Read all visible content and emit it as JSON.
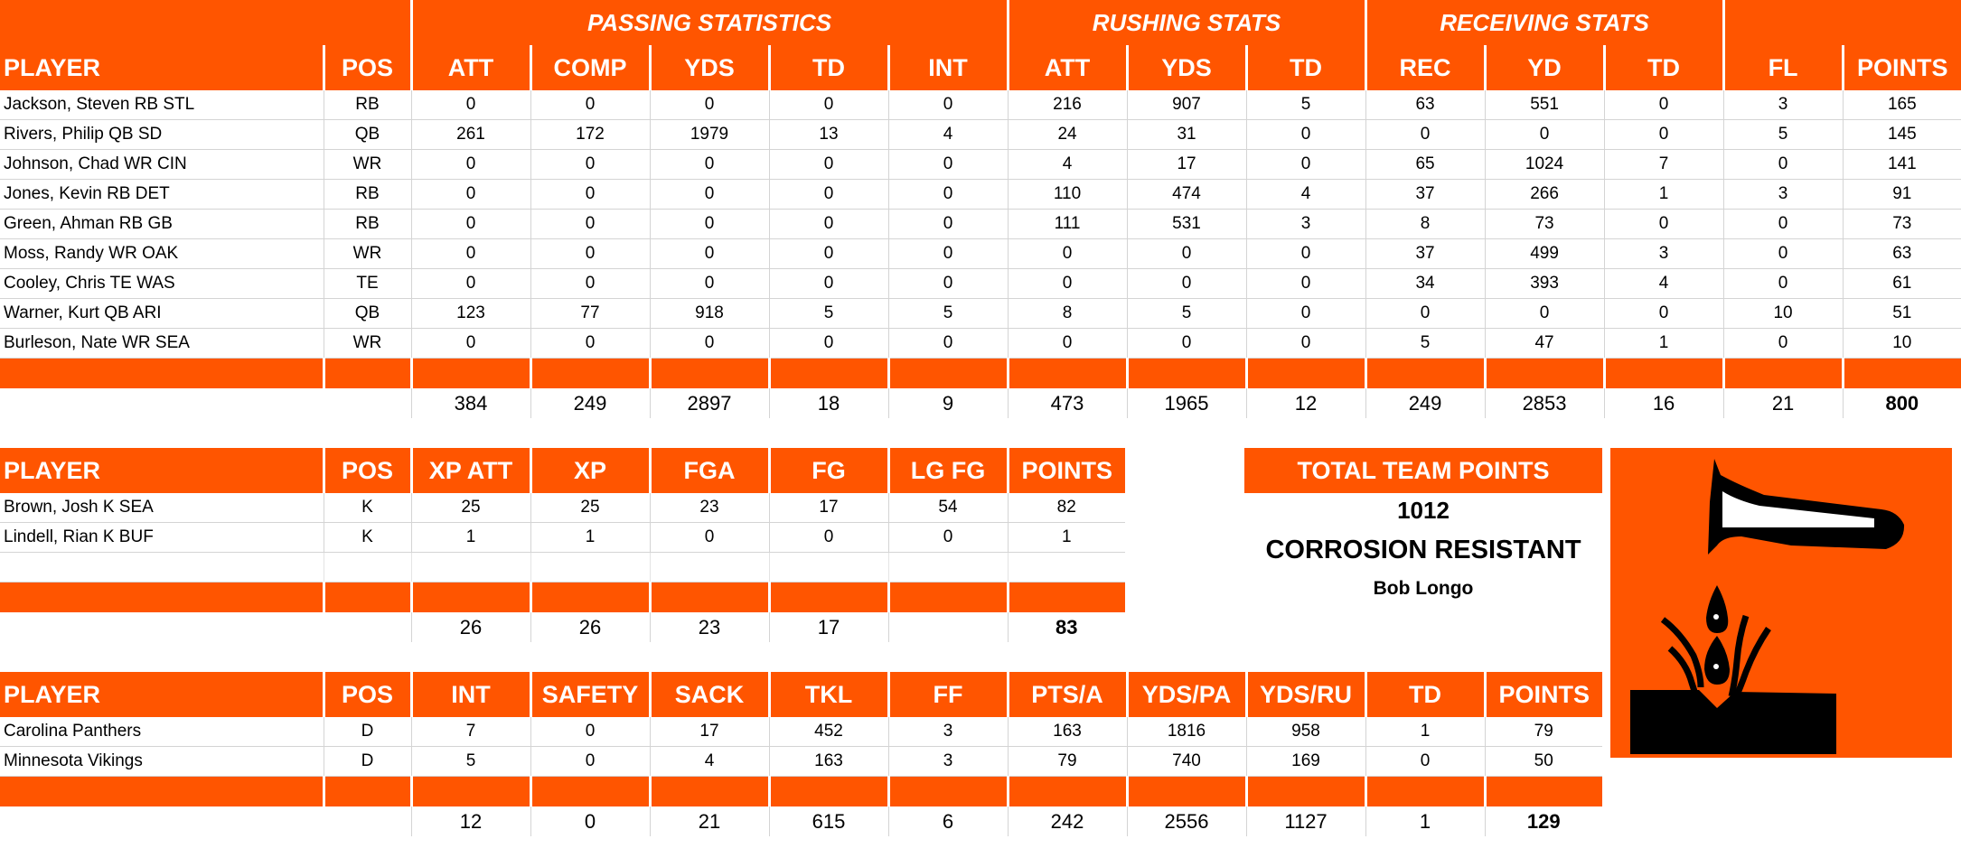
{
  "main_table": {
    "group_headers": {
      "passing": "PASSING STATISTICS",
      "rushing": "RUSHING STATS",
      "receiving": "RECEIVING STATS"
    },
    "columns": [
      "PLAYER",
      "POS",
      "ATT",
      "COMP",
      "YDS",
      "TD",
      "INT",
      "ATT",
      "YDS",
      "TD",
      "REC",
      "YD",
      "TD",
      "FL",
      "POINTS"
    ],
    "rows": [
      [
        "Jackson, Steven RB STL",
        "RB",
        "0",
        "0",
        "0",
        "0",
        "0",
        "216",
        "907",
        "5",
        "63",
        "551",
        "0",
        "3",
        "165"
      ],
      [
        "Rivers, Philip QB SD",
        "QB",
        "261",
        "172",
        "1979",
        "13",
        "4",
        "24",
        "31",
        "0",
        "0",
        "0",
        "0",
        "5",
        "145"
      ],
      [
        "Johnson, Chad WR CIN",
        "WR",
        "0",
        "0",
        "0",
        "0",
        "0",
        "4",
        "17",
        "0",
        "65",
        "1024",
        "7",
        "0",
        "141"
      ],
      [
        "Jones, Kevin RB DET",
        "RB",
        "0",
        "0",
        "0",
        "0",
        "0",
        "110",
        "474",
        "4",
        "37",
        "266",
        "1",
        "3",
        "91"
      ],
      [
        "Green, Ahman RB GB",
        "RB",
        "0",
        "0",
        "0",
        "0",
        "0",
        "111",
        "531",
        "3",
        "8",
        "73",
        "0",
        "0",
        "73"
      ],
      [
        "Moss, Randy WR OAK",
        "WR",
        "0",
        "0",
        "0",
        "0",
        "0",
        "0",
        "0",
        "0",
        "37",
        "499",
        "3",
        "0",
        "63"
      ],
      [
        "Cooley, Chris TE WAS",
        "TE",
        "0",
        "0",
        "0",
        "0",
        "0",
        "0",
        "0",
        "0",
        "34",
        "393",
        "4",
        "0",
        "61"
      ],
      [
        "Warner, Kurt QB ARI",
        "QB",
        "123",
        "77",
        "918",
        "5",
        "5",
        "8",
        "5",
        "0",
        "0",
        "0",
        "0",
        "10",
        "51"
      ],
      [
        "Burleson, Nate WR SEA",
        "WR",
        "0",
        "0",
        "0",
        "0",
        "0",
        "0",
        "0",
        "0",
        "5",
        "47",
        "1",
        "0",
        "10"
      ]
    ],
    "totals": [
      "",
      "",
      "384",
      "249",
      "2897",
      "18",
      "9",
      "473",
      "1965",
      "12",
      "249",
      "2853",
      "16",
      "21",
      "800"
    ]
  },
  "kicker_table": {
    "columns": [
      "PLAYER",
      "POS",
      "XP ATT",
      "XP",
      "FGA",
      "FG",
      "LG FG",
      "POINTS"
    ],
    "rows": [
      [
        "Brown, Josh K SEA",
        "K",
        "25",
        "25",
        "23",
        "17",
        "54",
        "82"
      ],
      [
        "Lindell, Rian K BUF",
        "K",
        "1",
        "1",
        "0",
        "0",
        "0",
        "1"
      ]
    ],
    "totals": [
      "",
      "",
      "26",
      "26",
      "23",
      "17",
      "",
      "83"
    ]
  },
  "defense_table": {
    "columns": [
      "PLAYER",
      "POS",
      "INT",
      "SAFETY",
      "SACK",
      "TKL",
      "FF",
      "PTS/A",
      "YDS/PA",
      "YDS/RU",
      "TD",
      "POINTS"
    ],
    "rows": [
      [
        "Carolina Panthers",
        "D",
        "7",
        "0",
        "17",
        "452",
        "3",
        "163",
        "1816",
        "958",
        "1",
        "79"
      ],
      [
        "Minnesota Vikings",
        "D",
        "5",
        "0",
        "4",
        "163",
        "3",
        "79",
        "740",
        "169",
        "0",
        "50"
      ]
    ],
    "totals": [
      "",
      "",
      "12",
      "0",
      "21",
      "615",
      "6",
      "242",
      "2556",
      "1127",
      "1",
      "129"
    ]
  },
  "team_summary": {
    "title": "TOTAL TEAM POINTS",
    "points": "1012",
    "team_name": "CORROSION RESISTANT",
    "owner": "Bob Longo"
  },
  "logo": {
    "icon": "corrosive-hazard-icon"
  },
  "colors": {
    "accent": "#ff5500",
    "grid": "#d4d4d4",
    "text": "#000000"
  }
}
